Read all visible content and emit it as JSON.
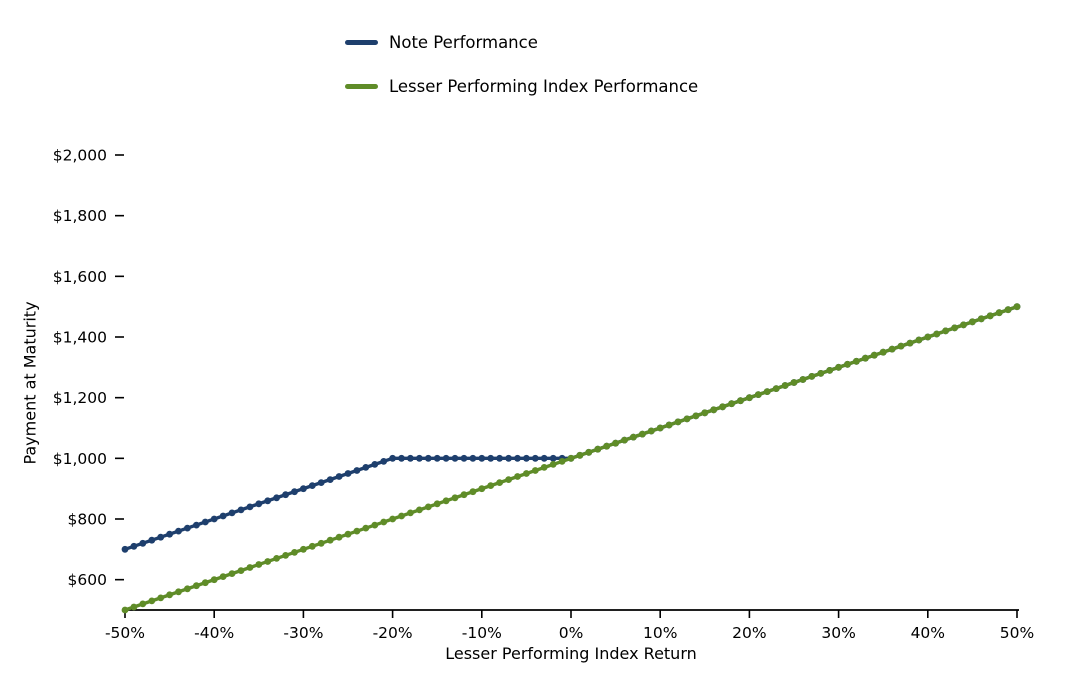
{
  "chart_data": {
    "type": "line",
    "title": "",
    "xlabel": "Lesser Performing Index Return",
    "ylabel": "Payment at Maturity",
    "grid": false,
    "legend_position": "top-left",
    "background_color": "#ffffff",
    "axis_color": "#000000",
    "x_axis": {
      "min": -50,
      "max": 50,
      "unit": "%",
      "ticks": [
        -50,
        -40,
        -30,
        -20,
        -10,
        0,
        10,
        20,
        30,
        40,
        50
      ],
      "tick_labels": [
        "-50%",
        "-40%",
        "-30%",
        "-20%",
        "-10%",
        "0%",
        "10%",
        "20%",
        "30%",
        "40%",
        "50%"
      ]
    },
    "y_axis": {
      "min": 500,
      "max": 2000,
      "unit": "$",
      "ticks": [
        600,
        800,
        1000,
        1200,
        1400,
        1600,
        1800,
        2000
      ],
      "tick_labels": [
        "$600",
        "$800",
        "$1,000",
        "$1,200",
        "$1,400",
        "$1,600",
        "$1,800",
        "$2,000"
      ]
    },
    "marker_interval_pct": 1,
    "marker_style": "circle",
    "series": [
      {
        "name": "Note Performance",
        "color": "#1e3f6d",
        "breakpoints_x": [
          -50,
          -20,
          0,
          50
        ],
        "breakpoints_y": [
          700,
          1000,
          1000,
          1500
        ],
        "description_points": [
          {
            "x_pct": -50,
            "y": 700
          },
          {
            "x_pct": -20,
            "y": 1000
          },
          {
            "x_pct": 0,
            "y": 1000
          },
          {
            "x_pct": 50,
            "y": 1500
          }
        ]
      },
      {
        "name": "Lesser Performing Index Performance",
        "color": "#5f8c28",
        "breakpoints_x": [
          -50,
          50
        ],
        "breakpoints_y": [
          500,
          1500
        ],
        "description_points": [
          {
            "x_pct": -50,
            "y": 500
          },
          {
            "x_pct": 0,
            "y": 1000
          },
          {
            "x_pct": 50,
            "y": 1500
          }
        ]
      }
    ]
  }
}
